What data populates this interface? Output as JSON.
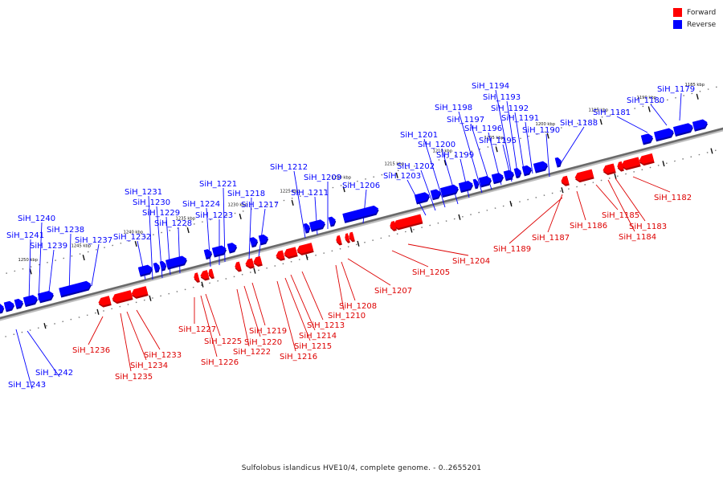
{
  "legend": {
    "forward_label": "Forward",
    "reverse_label": "Reverse",
    "forward_color": "#ff0000",
    "reverse_color": "#0000ff"
  },
  "caption": "Sulfolobus islandicus HVE10/4, complete genome. - 0..2655201",
  "scale": {
    "ticks": [
      "1185 kbp",
      "1190 kbp",
      "1195 kbp",
      "1200 kbp",
      "1205 kbp",
      "1210 kbp",
      "1215 kbp",
      "1220 kbp",
      "1225 kbp",
      "1230 kbp",
      "1235 kbp",
      "1240 kbp",
      "1245 kbp",
      "1250 kbp"
    ]
  },
  "genes": {
    "reverse": [
      "SiH_1179",
      "SiH_1180",
      "SiH_1181",
      "SiH_1188",
      "SiH_1190",
      "SiH_1191",
      "SiH_1192",
      "SiH_1193",
      "SiH_1194",
      "SiH_1195",
      "SiH_1196",
      "SiH_1197",
      "SiH_1198",
      "SiH_1199",
      "SiH_1200",
      "SiH_1201",
      "SiH_1202",
      "SiH_1203",
      "SiH_1206",
      "SiH_1209",
      "SiH_1211",
      "SiH_1212",
      "SiH_1217",
      "SiH_1218",
      "SiH_1221",
      "SiH_1223",
      "SiH_1224",
      "SiH_1228",
      "SiH_1229",
      "SiH_1230",
      "SiH_1231",
      "SiH_1232",
      "SiH_1237",
      "SiH_1238",
      "SiH_1239",
      "SiH_1240",
      "SiH_1241",
      "SiH_1242",
      "SiH_1243"
    ],
    "forward": [
      "SiH_1182",
      "SiH_1183",
      "SiH_1184",
      "SiH_1185",
      "SiH_1186",
      "SiH_1187",
      "SiH_1189",
      "SiH_1204",
      "SiH_1205",
      "SiH_1207",
      "SiH_1208",
      "SiH_1210",
      "SiH_1213",
      "SiH_1214",
      "SiH_1215",
      "SiH_1216",
      "SiH_1219",
      "SiH_1220",
      "SiH_1222",
      "SiH_1225",
      "SiH_1226",
      "SiH_1227",
      "SiH_1233",
      "SiH_1234",
      "SiH_1235",
      "SiH_1236"
    ]
  }
}
